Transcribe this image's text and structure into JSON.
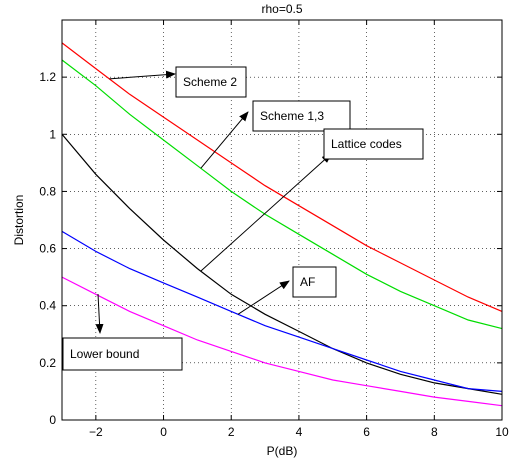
{
  "chart_data": {
    "type": "line",
    "title": "rho=0.5",
    "xlabel": "P(dB)",
    "ylabel": "Distortion",
    "xlim": [
      -3,
      10
    ],
    "ylim": [
      0,
      1.4
    ],
    "xticks": [
      -2,
      0,
      2,
      4,
      6,
      8,
      10
    ],
    "yticks": [
      0,
      0.2,
      0.4,
      0.6,
      0.8,
      1,
      1.2
    ],
    "xtick_labels": [
      "−2",
      "0",
      "2",
      "4",
      "6",
      "8",
      "10"
    ],
    "ytick_labels": [
      "0",
      "0.2",
      "0.4",
      "0.6",
      "0.8",
      "1",
      "1.2"
    ],
    "grid": true,
    "x": [
      -3,
      -2,
      -1,
      0,
      1,
      2,
      3,
      4,
      5,
      6,
      7,
      8,
      9,
      10
    ],
    "series": [
      {
        "name": "Scheme 2",
        "color": "#ff0000",
        "values": [
          1.32,
          1.23,
          1.14,
          1.06,
          0.98,
          0.9,
          0.82,
          0.75,
          0.68,
          0.61,
          0.55,
          0.49,
          0.43,
          0.38
        ]
      },
      {
        "name": "Scheme 1,3",
        "color": "#00dd00",
        "values": [
          1.26,
          1.17,
          1.07,
          0.98,
          0.89,
          0.8,
          0.72,
          0.65,
          0.58,
          0.51,
          0.45,
          0.4,
          0.35,
          0.32
        ]
      },
      {
        "name": "Lattice codes",
        "color": "#000000",
        "values": [
          1.0,
          0.86,
          0.74,
          0.63,
          0.53,
          0.44,
          0.37,
          0.31,
          0.25,
          0.2,
          0.16,
          0.13,
          0.11,
          0.09
        ]
      },
      {
        "name": "AF",
        "color": "#0000ff",
        "values": [
          0.66,
          0.59,
          0.53,
          0.48,
          0.43,
          0.38,
          0.33,
          0.29,
          0.25,
          0.21,
          0.17,
          0.14,
          0.11,
          0.1
        ]
      },
      {
        "name": "Lower bound",
        "color": "#ff00ff",
        "values": [
          0.5,
          0.44,
          0.38,
          0.33,
          0.28,
          0.24,
          0.2,
          0.17,
          0.14,
          0.12,
          0.1,
          0.08,
          0.065,
          0.05
        ]
      }
    ],
    "annotations": [
      {
        "text": "Scheme 2",
        "series": "Scheme 2",
        "at_x": -1.6
      },
      {
        "text": "Scheme 1,3",
        "series": "Scheme 1,3",
        "at_x": 1.1
      },
      {
        "text": "Lattice codes",
        "series": "Lattice codes",
        "at_x": 1.1
      },
      {
        "text": "AF",
        "series": "AF",
        "at_x": 2.2
      },
      {
        "text": "Lower bound",
        "series": "Lower bound",
        "at_x": -2.4
      }
    ]
  }
}
